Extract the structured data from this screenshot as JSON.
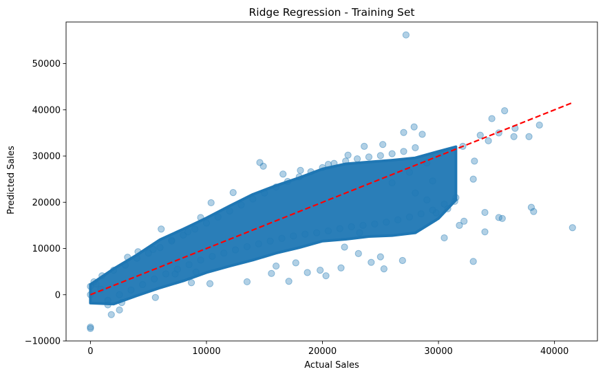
{
  "chart_data": {
    "type": "scatter",
    "title": "Ridge Regression - Training Set",
    "xlabel": "Actual Sales",
    "ylabel": "Predicted Sales",
    "xlim": [
      -2100,
      43700
    ],
    "ylim": [
      -10000,
      59000
    ],
    "xticks": [
      0,
      10000,
      20000,
      30000,
      40000
    ],
    "yticks": [
      -10000,
      0,
      10000,
      20000,
      30000,
      40000,
      50000
    ],
    "grid": false,
    "legend": "none",
    "point_color": "#1f77b4",
    "point_alpha": 0.35,
    "reference_line": {
      "x": [
        0,
        41551
      ],
      "y": [
        0,
        41551
      ],
      "color": "#ff0000",
      "style": "dashed"
    },
    "series": [
      {
        "values": [
          [
            0,
            -7000
          ],
          [
            0,
            -7300
          ],
          [
            27200,
            56200
          ],
          [
            41551,
            14500
          ],
          [
            38700,
            36700
          ],
          [
            35700,
            39800
          ],
          [
            36500,
            34200
          ],
          [
            37800,
            34200
          ],
          [
            38000,
            18900
          ],
          [
            38200,
            18000
          ],
          [
            35200,
            16700
          ],
          [
            35500,
            16500
          ],
          [
            34000,
            17800
          ],
          [
            34000,
            13600
          ],
          [
            33000,
            7200
          ],
          [
            26900,
            7400
          ],
          [
            25000,
            8200
          ],
          [
            25300,
            5600
          ],
          [
            21600,
            5800
          ],
          [
            20300,
            4100
          ],
          [
            24200,
            7000
          ],
          [
            30500,
            12300
          ],
          [
            31800,
            15000
          ],
          [
            32200,
            15900
          ],
          [
            29800,
            17700
          ],
          [
            30800,
            18600
          ],
          [
            31400,
            20200
          ],
          [
            29500,
            24600
          ],
          [
            30200,
            30600
          ],
          [
            33000,
            25000
          ],
          [
            34300,
            33300
          ],
          [
            33100,
            28900
          ],
          [
            33600,
            34500
          ],
          [
            34600,
            38100
          ],
          [
            35200,
            35000
          ],
          [
            36600,
            36000
          ],
          [
            32100,
            32100
          ],
          [
            27000,
            35100
          ],
          [
            27900,
            36300
          ],
          [
            28600,
            34700
          ],
          [
            13500,
            2800
          ],
          [
            10300,
            2400
          ],
          [
            17100,
            2900
          ],
          [
            15600,
            4600
          ],
          [
            16000,
            6200
          ],
          [
            17700,
            6900
          ],
          [
            18700,
            4800
          ],
          [
            19800,
            5300
          ],
          [
            14600,
            28600
          ],
          [
            14900,
            27800
          ],
          [
            16600,
            26100
          ],
          [
            18100,
            26900
          ],
          [
            20500,
            28200
          ],
          [
            22200,
            30200
          ],
          [
            23600,
            32100
          ],
          [
            25200,
            32500
          ],
          [
            23200,
            13400
          ],
          [
            21900,
            10300
          ],
          [
            23100,
            8900
          ],
          [
            12300,
            22100
          ],
          [
            10400,
            19900
          ],
          [
            9500,
            16700
          ],
          [
            8400,
            13600
          ],
          [
            7000,
            11800
          ],
          [
            6100,
            14200
          ],
          [
            7300,
            4500
          ],
          [
            8700,
            2600
          ],
          [
            9100,
            4900
          ],
          [
            3200,
            8100
          ],
          [
            4100,
            9300
          ],
          [
            5400,
            9800
          ],
          [
            2500,
            -3300
          ],
          [
            1800,
            -4300
          ],
          [
            1500,
            -2200
          ],
          [
            2700,
            -1700
          ],
          [
            5600,
            -600
          ],
          [
            300,
            2800
          ],
          [
            500,
            2300
          ],
          [
            900,
            1200
          ],
          [
            0,
            1800
          ],
          [
            0,
            0
          ],
          [
            1000,
            4100
          ],
          [
            2000,
            5300
          ],
          [
            3000,
            6400
          ],
          [
            4000,
            7900
          ],
          [
            5000,
            9000
          ],
          [
            6000,
            10200
          ],
          [
            7000,
            11600
          ],
          [
            8000,
            12900
          ],
          [
            9000,
            14200
          ],
          [
            10000,
            15500
          ],
          [
            11000,
            16800
          ],
          [
            12000,
            18100
          ],
          [
            13000,
            19400
          ],
          [
            14000,
            20700
          ],
          [
            15000,
            22000
          ],
          [
            16000,
            23300
          ],
          [
            17000,
            24500
          ],
          [
            18000,
            25500
          ],
          [
            19000,
            26600
          ],
          [
            20000,
            27500
          ],
          [
            21000,
            28400
          ],
          [
            22000,
            28900
          ],
          [
            23000,
            29400
          ],
          [
            24000,
            29800
          ],
          [
            25000,
            30100
          ],
          [
            26000,
            30500
          ],
          [
            27000,
            31000
          ],
          [
            28000,
            31800
          ],
          [
            1500,
            -1200
          ],
          [
            2500,
            0
          ],
          [
            3500,
            1000
          ],
          [
            4500,
            2200
          ],
          [
            5500,
            3400
          ],
          [
            6500,
            4500
          ],
          [
            7500,
            5500
          ],
          [
            8500,
            6500
          ],
          [
            9500,
            7500
          ],
          [
            10500,
            8300
          ],
          [
            11500,
            9000
          ],
          [
            12500,
            9700
          ],
          [
            13500,
            10400
          ],
          [
            14500,
            11000
          ],
          [
            15500,
            11600
          ],
          [
            16500,
            12200
          ],
          [
            17500,
            12700
          ],
          [
            18500,
            13100
          ],
          [
            19500,
            13400
          ],
          [
            20500,
            13800
          ],
          [
            21500,
            14300
          ],
          [
            22500,
            14700
          ],
          [
            23500,
            15000
          ],
          [
            24500,
            15300
          ],
          [
            25500,
            15700
          ],
          [
            26500,
            16200
          ],
          [
            27500,
            16800
          ],
          [
            28500,
            17500
          ],
          [
            29500,
            18300
          ],
          [
            30500,
            19600
          ],
          [
            31500,
            21000
          ],
          [
            29000,
            28500
          ],
          [
            27500,
            26500
          ],
          [
            26000,
            24200
          ],
          [
            28000,
            22000
          ],
          [
            29000,
            20500
          ]
        ]
      }
    ]
  }
}
